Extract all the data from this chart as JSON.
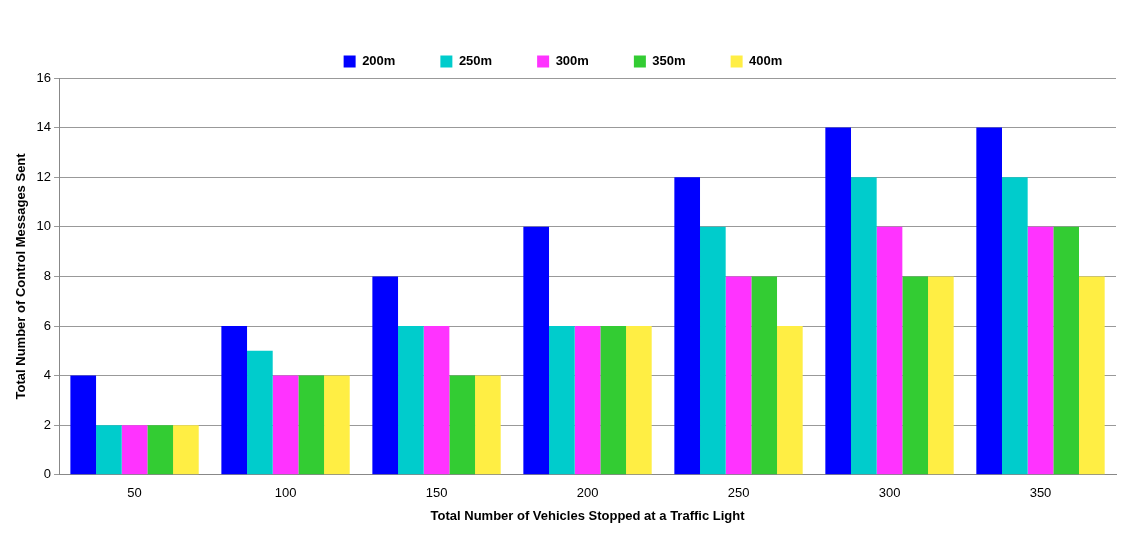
{
  "chart_data": {
    "type": "bar",
    "xlabel": "Total Number of Vehicles Stopped at a Traffic Light",
    "ylabel": "Total Number of Control Messages Sent",
    "categories": [
      "50",
      "100",
      "150",
      "200",
      "250",
      "300",
      "350"
    ],
    "series": [
      {
        "name": "200m",
        "color": "#0000ff",
        "values": [
          4,
          6,
          8,
          10,
          12,
          14,
          14
        ]
      },
      {
        "name": "250m",
        "color": "#00cccc",
        "values": [
          2,
          5,
          6,
          6,
          10,
          12,
          12
        ]
      },
      {
        "name": "300m",
        "color": "#ff33ff",
        "values": [
          2,
          4,
          6,
          6,
          8,
          10,
          10
        ]
      },
      {
        "name": "350m",
        "color": "#33cc33",
        "values": [
          2,
          4,
          4,
          6,
          8,
          8,
          10
        ]
      },
      {
        "name": "400m",
        "color": "#ffee44",
        "values": [
          2,
          4,
          4,
          6,
          6,
          8,
          8
        ]
      }
    ],
    "ylim": [
      0,
      16
    ],
    "yticks": [
      0,
      2,
      4,
      6,
      8,
      10,
      12,
      14,
      16
    ],
    "grid": "y",
    "legend": "top"
  }
}
